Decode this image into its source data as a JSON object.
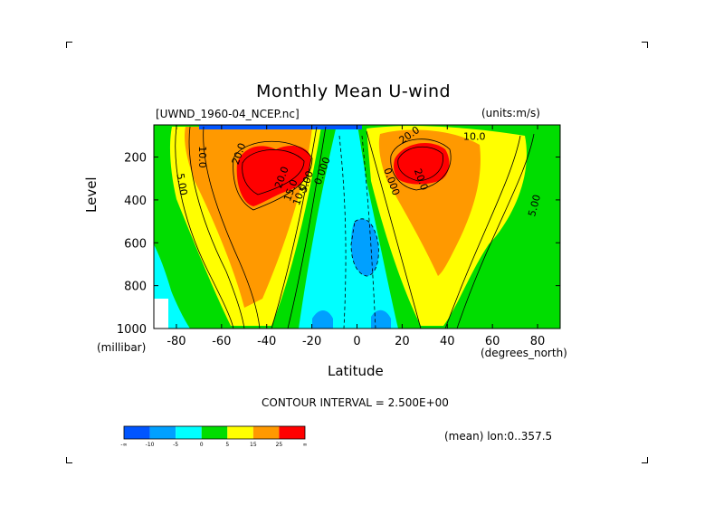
{
  "chart_data": {
    "type": "contour",
    "title": "Monthly Mean U-wind",
    "dataset_label": "[UWND_1960-04_NCEP.nc]",
    "units_label": "(units:m/s)",
    "xlabel": "Latitude",
    "x_unit": "(degrees_north)",
    "ylabel": "Level",
    "y_unit": "(millibar)",
    "xlim": [
      -90,
      90
    ],
    "ylim": [
      1000,
      50
    ],
    "x_ticks": [
      "-80",
      "-60",
      "-40",
      "-20",
      "0",
      "20",
      "40",
      "60",
      "80"
    ],
    "x_tick_values": [
      -80,
      -60,
      -40,
      -20,
      0,
      20,
      40,
      60,
      80
    ],
    "y_ticks": [
      "200",
      "400",
      "600",
      "800",
      "1000"
    ],
    "y_tick_values": [
      200,
      400,
      600,
      800,
      1000
    ],
    "contour_interval": "CONTOUR INTERVAL = 2.500E+00",
    "footnote": "(mean) lon:0..357.5",
    "contour_labels": [
      {
        "text": "10.0",
        "lat": -70,
        "lev": 200,
        "rot": 90
      },
      {
        "text": "5.00",
        "lat": -79,
        "lev": 330,
        "rot": 80
      },
      {
        "text": "20.0",
        "lat": -51,
        "lev": 190,
        "rot": -70
      },
      {
        "text": "20.0",
        "lat": -32,
        "lev": 300,
        "rot": -70
      },
      {
        "text": "15.0",
        "lat": -28,
        "lev": 360,
        "rot": -70
      },
      {
        "text": "10.0",
        "lat": -24,
        "lev": 380,
        "rot": -70
      },
      {
        "text": "5.00",
        "lat": -21,
        "lev": 320,
        "rot": -70
      },
      {
        "text": "0.000",
        "lat": -14,
        "lev": 270,
        "rot": -70
      },
      {
        "text": "0.000",
        "lat": 14,
        "lev": 320,
        "rot": 70
      },
      {
        "text": "20.0",
        "lat": 24,
        "lev": 110,
        "rot": -35
      },
      {
        "text": "10.0",
        "lat": 52,
        "lev": 120,
        "rot": 0
      },
      {
        "text": "20.0",
        "lat": 27,
        "lev": 310,
        "rot": 70
      },
      {
        "text": "5.00",
        "lat": 80,
        "lev": 430,
        "rot": -75
      }
    ],
    "jets": [
      {
        "hemisphere": "south",
        "core_lat": -30,
        "core_lev": 200,
        "max": 25
      },
      {
        "hemisphere": "north",
        "core_lat": 27,
        "core_lev": 200,
        "max": 25
      }
    ]
  },
  "colorbar": {
    "colors": [
      "#0055ff",
      "#00a0ff",
      "#00ffff",
      "#00dd00",
      "#ffff00",
      "#ff9900",
      "#ff0000"
    ],
    "labels": [
      "-∞",
      "-10",
      "-5",
      "0",
      "5",
      "15",
      "25",
      "∞"
    ]
  }
}
